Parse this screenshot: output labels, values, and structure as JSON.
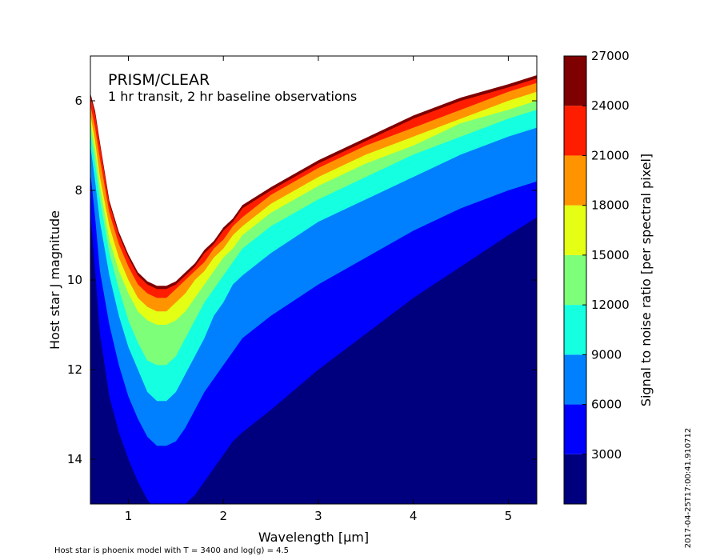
{
  "chart_data": {
    "type": "heatmap",
    "title": "PRISM/CLEAR",
    "subtitle": "1 hr transit, 2 hr baseline observations",
    "xlabel": "Wavelength [$\\mu$m]",
    "xlabel_display": "Wavelength [μm]",
    "ylabel": "Host star J magnitude",
    "xlim": [
      0.6,
      5.3
    ],
    "ylim": [
      15.0,
      5.0
    ],
    "y_inverted": true,
    "x_ticks": [
      1,
      2,
      3,
      4,
      5
    ],
    "y_ticks": [
      6,
      8,
      10,
      12,
      14
    ],
    "colorbar": {
      "label": "Signal to noise ratio [per spectral pixel]",
      "range": [
        0,
        27000
      ],
      "ticks": [
        3000,
        6000,
        9000,
        12000,
        15000,
        18000,
        21000,
        24000,
        27000
      ],
      "levels": [
        0,
        3000,
        6000,
        9000,
        12000,
        15000,
        18000,
        21000,
        24000,
        27000
      ],
      "colors": [
        "#00007f",
        "#0000ff",
        "#0080ff",
        "#15ffe1",
        "#7dff7a",
        "#e4ff13",
        "#ff9400",
        "#ff1d00",
        "#7f0000"
      ]
    },
    "contour_boundaries": {
      "x": [
        0.6,
        0.65,
        0.7,
        0.8,
        0.9,
        1.0,
        1.1,
        1.2,
        1.3,
        1.4,
        1.5,
        1.6,
        1.7,
        1.8,
        1.9,
        2.0,
        2.1,
        2.2,
        2.5,
        3.0,
        3.5,
        4.0,
        4.5,
        5.0,
        5.3
      ],
      "series": [
        {
          "level": 3000,
          "y": [
            8.5,
            9.8,
            11.2,
            12.6,
            13.4,
            14.0,
            14.5,
            14.9,
            15.2,
            15.3,
            15.2,
            15.0,
            14.8,
            14.5,
            14.2,
            13.9,
            13.6,
            13.4,
            12.9,
            12.0,
            11.2,
            10.4,
            9.7,
            9.0,
            8.6
          ]
        },
        {
          "level": 6000,
          "y": [
            7.6,
            8.6,
            9.8,
            11.0,
            11.9,
            12.6,
            13.1,
            13.5,
            13.7,
            13.7,
            13.6,
            13.3,
            12.9,
            12.5,
            12.2,
            11.9,
            11.6,
            11.3,
            10.8,
            10.1,
            9.5,
            8.9,
            8.4,
            8.0,
            7.8
          ]
        },
        {
          "level": 9000,
          "y": [
            7.0,
            7.8,
            8.7,
            9.9,
            10.8,
            11.5,
            12.0,
            12.5,
            12.7,
            12.7,
            12.5,
            12.1,
            11.7,
            11.3,
            10.8,
            10.5,
            10.1,
            9.9,
            9.4,
            8.7,
            8.2,
            7.7,
            7.2,
            6.8,
            6.6
          ]
        },
        {
          "level": 12000,
          "y": [
            6.7,
            7.4,
            8.2,
            9.4,
            10.2,
            10.9,
            11.4,
            11.8,
            11.9,
            11.9,
            11.7,
            11.3,
            10.9,
            10.5,
            10.2,
            9.9,
            9.6,
            9.3,
            8.8,
            8.2,
            7.7,
            7.2,
            6.8,
            6.4,
            6.2
          ]
        },
        {
          "level": 15000,
          "y": [
            6.5,
            7.1,
            7.9,
            9.1,
            9.8,
            10.3,
            10.7,
            10.9,
            11.0,
            11.0,
            10.9,
            10.7,
            10.4,
            10.1,
            9.8,
            9.5,
            9.3,
            9.0,
            8.5,
            7.9,
            7.4,
            7.0,
            6.5,
            6.2,
            6.0
          ]
        },
        {
          "level": 18000,
          "y": [
            6.3,
            6.9,
            7.7,
            8.8,
            9.5,
            10.0,
            10.4,
            10.6,
            10.7,
            10.7,
            10.5,
            10.3,
            10.0,
            9.8,
            9.5,
            9.3,
            9.0,
            8.8,
            8.3,
            7.7,
            7.2,
            6.8,
            6.4,
            6.0,
            5.8
          ]
        },
        {
          "level": 21000,
          "y": [
            6.1,
            6.6,
            7.3,
            8.5,
            9.2,
            9.7,
            10.1,
            10.3,
            10.4,
            10.4,
            10.2,
            10.0,
            9.8,
            9.6,
            9.3,
            9.1,
            8.8,
            8.6,
            8.1,
            7.5,
            7.0,
            6.6,
            6.2,
            5.8,
            5.6
          ]
        },
        {
          "level": 24000,
          "y": [
            5.9,
            6.3,
            7.0,
            8.3,
            9.0,
            9.5,
            9.9,
            10.1,
            10.2,
            10.2,
            10.1,
            9.9,
            9.7,
            9.4,
            9.2,
            8.9,
            8.7,
            8.4,
            8.0,
            7.4,
            6.9,
            6.4,
            6.0,
            5.7,
            5.5
          ]
        }
      ]
    },
    "annotations": [
      "Host star is phoenix model with T = 3400 and log(g) = 4.5",
      "2017-04-25T17:00:41.910712"
    ]
  }
}
